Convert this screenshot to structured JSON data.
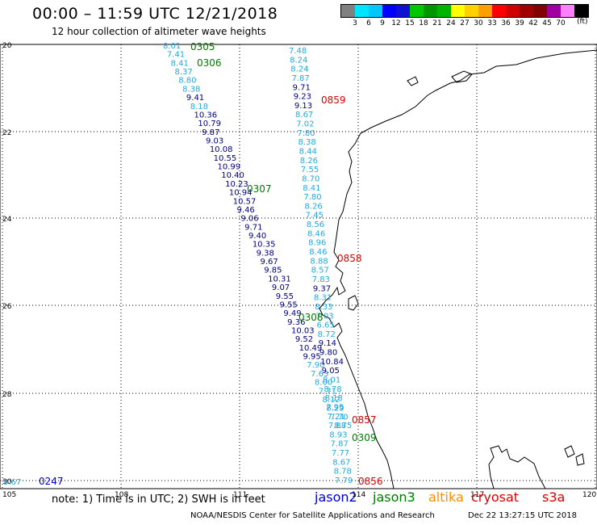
{
  "header": {
    "title": "00:00 – 11:59 UTC 12/21/2018",
    "subtitle": "12 hour collection of altimeter wave heights"
  },
  "scale": {
    "colors": [
      "#808080",
      "#00e5ff",
      "#00c8ff",
      "#0000ff",
      "#1010d0",
      "#00c800",
      "#009600",
      "#00b400",
      "#ffff00",
      "#ffd000",
      "#ffa000",
      "#ff0000",
      "#d00000",
      "#a00000",
      "#800000",
      "#a000a0",
      "#ff80ff",
      "#000000"
    ],
    "labels": [
      "3",
      "6",
      "9",
      "12",
      "15",
      "18",
      "21",
      "24",
      "27",
      "30",
      "33",
      "36",
      "39",
      "42",
      "45",
      "70"
    ],
    "unit": "(ft)"
  },
  "axes": {
    "lat_labels": [
      "20",
      "22",
      "24",
      "26",
      "28",
      "30"
    ],
    "lon_labels": [
      "105",
      "108",
      "111",
      "114",
      "117",
      "120"
    ]
  },
  "passes": [
    {
      "label": "0305",
      "satellite": "jason3"
    },
    {
      "label": "0306",
      "satellite": "jason3"
    },
    {
      "label": "0307",
      "satellite": "jason3"
    },
    {
      "label": "0308",
      "satellite": "jason3"
    },
    {
      "label": "0309",
      "satellite": "jason3"
    },
    {
      "label": "0859",
      "satellite": "cryosat"
    },
    {
      "label": "0858",
      "satellite": "cryosat"
    },
    {
      "label": "0857",
      "satellite": "cryosat"
    },
    {
      "label": "0856",
      "satellite": "cryosat"
    },
    {
      "label": "0247",
      "satellite": "jason2"
    }
  ],
  "track_west": [
    "8.01",
    "7.41",
    "8.41",
    "8.37",
    "8.80",
    "8.38",
    "9.41",
    "8.18",
    "10.36",
    "10.79",
    "9.87",
    "9.03",
    "10.08",
    "10.55",
    "10.99",
    "10.40",
    "10.23",
    "10.94",
    "10.57",
    "9.46",
    "9.06",
    "9.71",
    "9.40",
    "10.35",
    "9.38",
    "9.67",
    "9.85",
    "10.31",
    "9.07",
    "9.55",
    "9.55",
    "9.49",
    "9.36",
    "10.03",
    "9.52",
    "10.49",
    "9.95",
    "7.90",
    "7.63",
    "8.00",
    "7.71",
    "8.12",
    "8.29",
    "7.70",
    "8.75"
  ],
  "track_east": [
    "7.48",
    "8.24",
    "8.24",
    "7.87",
    "9.71",
    "9.23",
    "9.13",
    "8.67",
    "7.02",
    "7.80",
    "8.38",
    "8.44",
    "8.26",
    "7.55",
    "8.70",
    "8.41",
    "7.80",
    "8.26",
    "7.45",
    "8.56",
    "8.46",
    "8.96",
    "8.46",
    "8.88",
    "8.57",
    "7.83",
    "9.37",
    "8.31",
    "8.33",
    "7.03",
    "6.65",
    "8.72",
    "9.14",
    "9.80",
    "10.84",
    "9.05",
    "8.01",
    "8.78",
    "8.18",
    "7.95",
    "7.21",
    "7.88",
    "8.93",
    "7.87",
    "7.77",
    "8.67",
    "8.78",
    "7.79"
  ],
  "extra_value": "8.67",
  "note": "note: 1) Time is in UTC; 2) SWH is in feet",
  "legend": {
    "jason2": "jason2",
    "jason3": "jason3",
    "altika": "altika",
    "cryosat": "cryosat",
    "s3a": "s3a"
  },
  "footer": {
    "credit": "NOAA/NESDIS Center for Satellite Applications and Research",
    "timestamp": "Dec 22 13:27:15 UTC 2018"
  },
  "colors": {
    "jason2": "#0000cc",
    "jason3": "#007a00",
    "altika": "#ff8c00",
    "cryosat": "#dd0000",
    "s3a": "#dd0000",
    "light_value": "#22aadd",
    "dark_value": "#000080"
  }
}
